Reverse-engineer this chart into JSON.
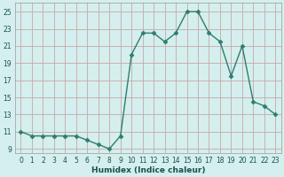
{
  "x": [
    0,
    1,
    2,
    3,
    4,
    5,
    6,
    7,
    8,
    9,
    10,
    11,
    12,
    13,
    14,
    15,
    16,
    17,
    18,
    19,
    20,
    21,
    22,
    23
  ],
  "y": [
    11,
    10.5,
    10.5,
    10.5,
    10.5,
    10.5,
    10,
    9.5,
    9,
    10.5,
    20,
    22.5,
    22.5,
    21.5,
    22.5,
    25,
    25,
    22.5,
    21.5,
    17.5,
    21,
    14.5,
    14,
    13
  ],
  "line_color": "#2e7d6e",
  "marker": "D",
  "marker_size": 2.5,
  "bg_color": "#d4efee",
  "grid_color": "#c8a8a8",
  "xlabel": "Humidex (Indice chaleur)",
  "xlim": [
    -0.5,
    23.5
  ],
  "ylim": [
    8.5,
    26
  ],
  "yticks": [
    9,
    11,
    13,
    15,
    17,
    19,
    21,
    23,
    25
  ],
  "xticks": [
    0,
    1,
    2,
    3,
    4,
    5,
    6,
    7,
    8,
    9,
    10,
    11,
    12,
    13,
    14,
    15,
    16,
    17,
    18,
    19,
    20,
    21,
    22,
    23
  ],
  "xlabel_fontsize": 6.5,
  "tick_fontsize": 5.5,
  "line_width": 1.0
}
